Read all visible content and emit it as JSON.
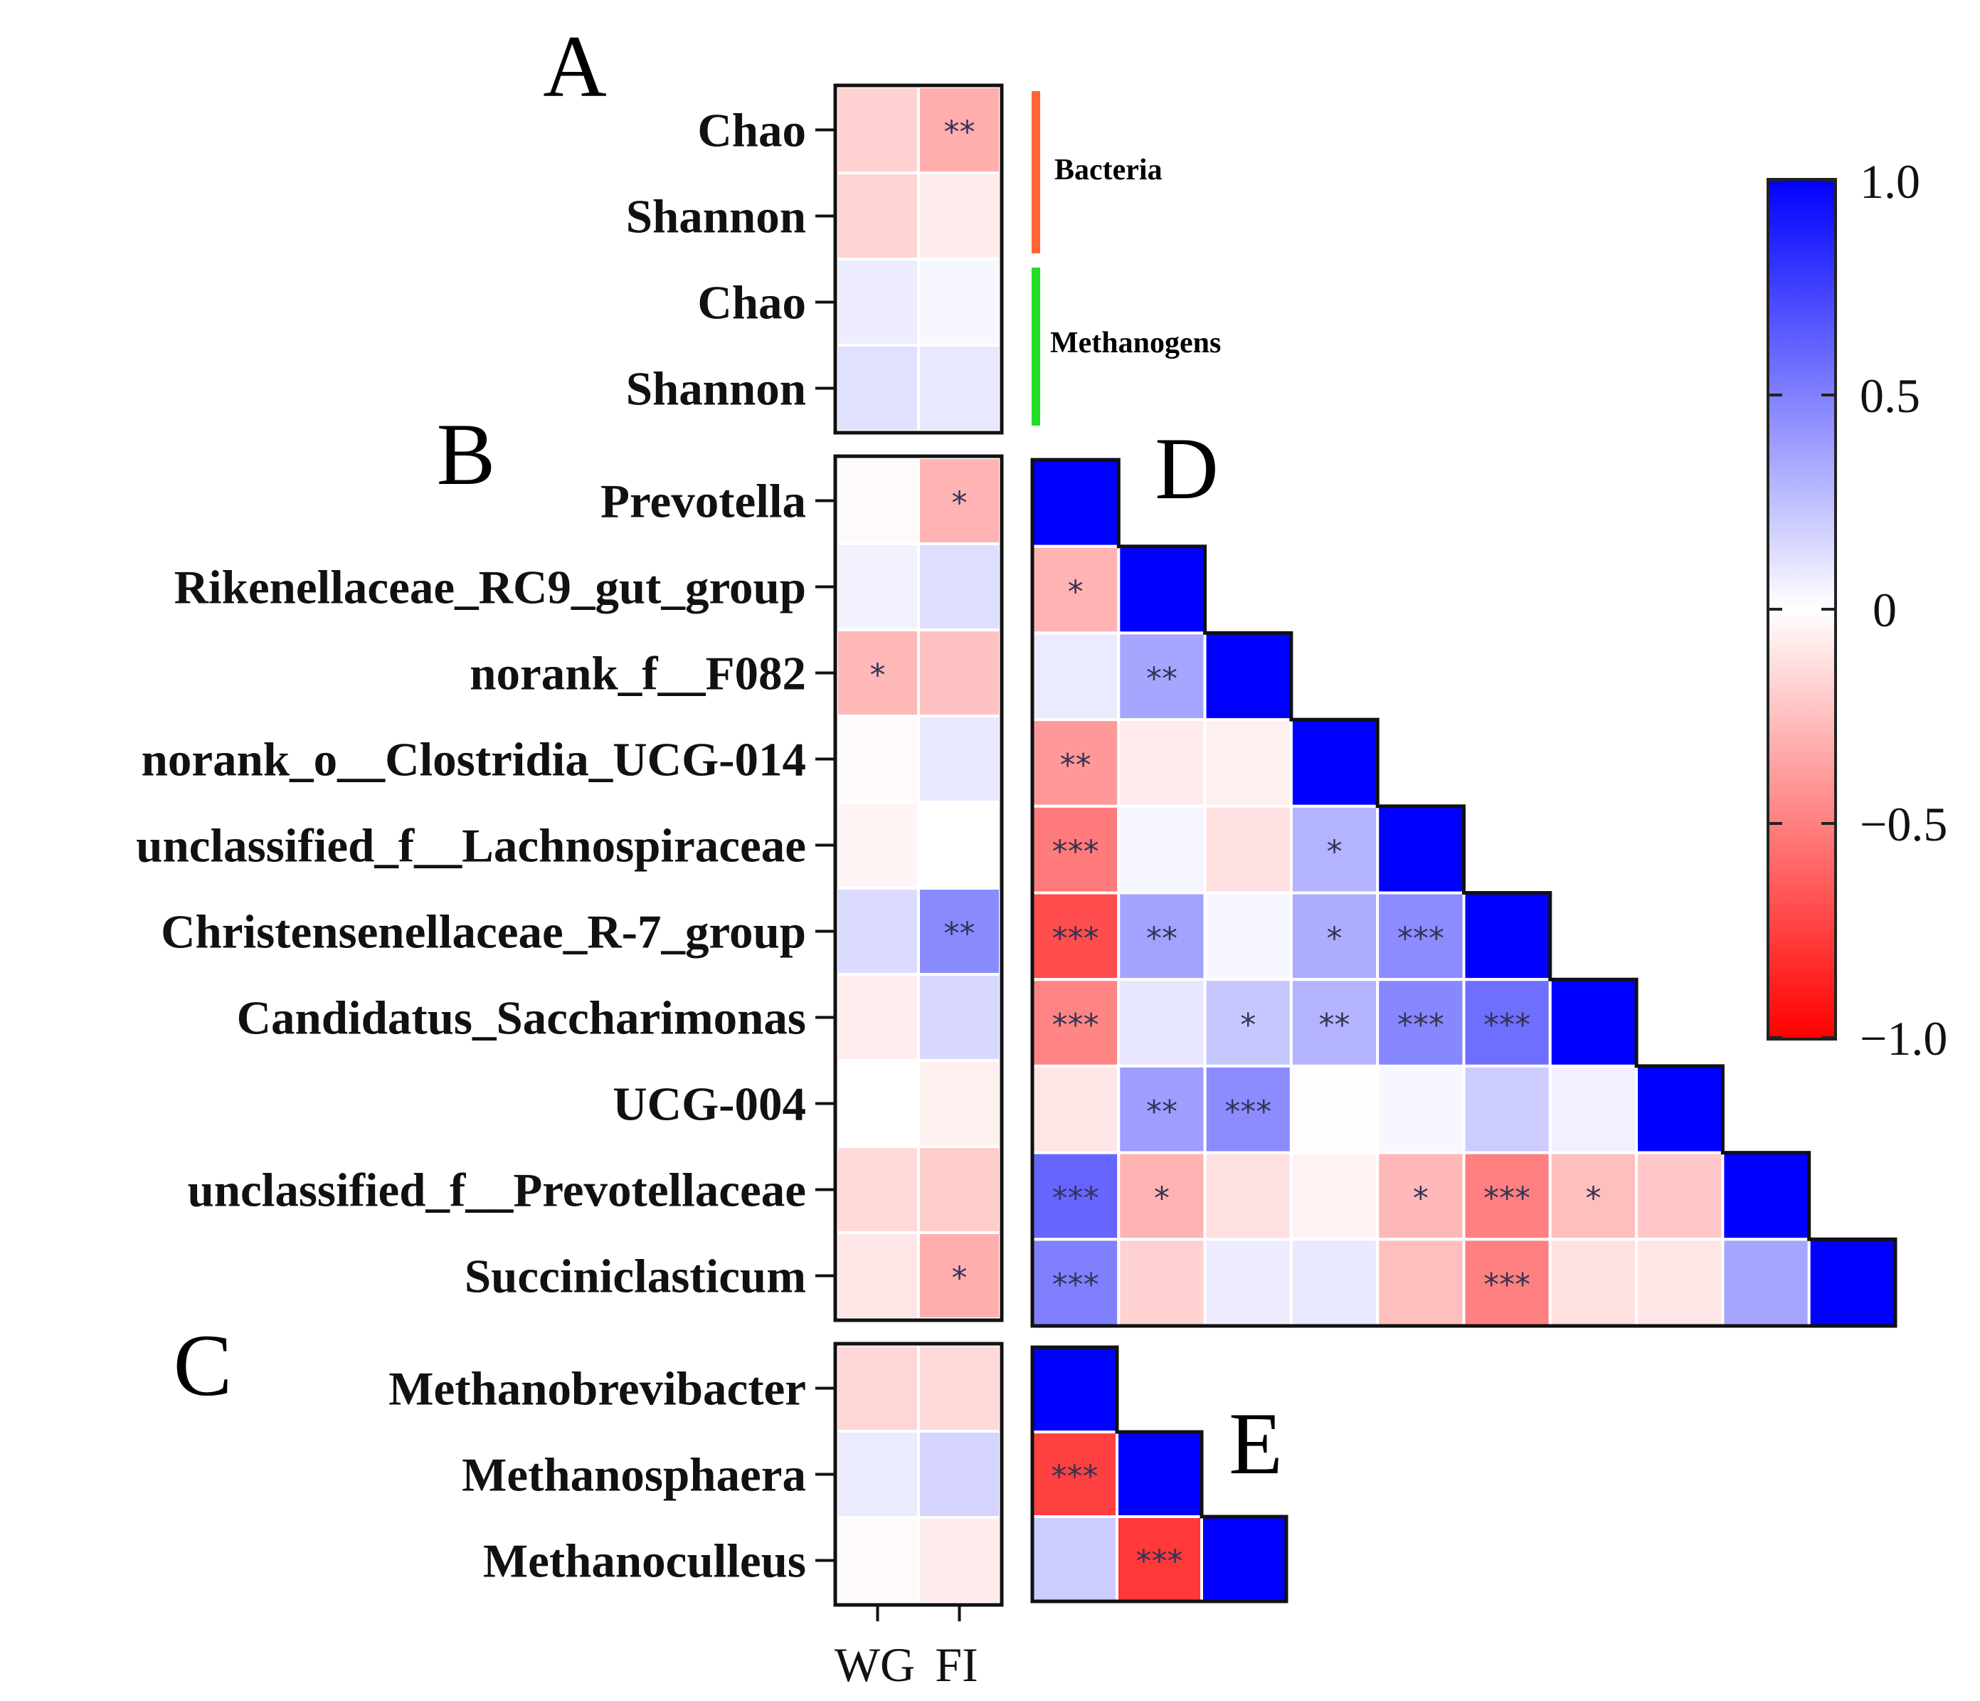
{
  "colors": {
    "pos": "#0000ff",
    "neg": "#ff0000",
    "mid": "#ffffff",
    "bacteria_bar": "#ff6633",
    "methanogens_bar": "#22dd22"
  },
  "chart_data": [
    {
      "panel": "A",
      "type": "heatmap",
      "rows": [
        "Chao",
        "Shannon",
        "Chao",
        "Shannon"
      ],
      "columns": [
        "WG",
        "FI"
      ],
      "groups": [
        {
          "label": "Bacteria",
          "rows": [
            0,
            1
          ]
        },
        {
          "label": "Methanogens",
          "rows": [
            2,
            3
          ]
        }
      ],
      "values": [
        [
          -0.18,
          -0.32
        ],
        [
          -0.17,
          -0.08
        ],
        [
          0.07,
          0.03
        ],
        [
          0.12,
          0.09
        ]
      ],
      "significance": [
        [
          "",
          "**"
        ],
        [
          "",
          ""
        ],
        [
          "",
          ""
        ],
        [
          "",
          ""
        ]
      ]
    },
    {
      "panel": "B",
      "type": "heatmap",
      "rows": [
        "Prevotella",
        "Rikenellaceae_RC9_gut_group",
        "norank_f__F082",
        "norank_o__Clostridia_UCG-014",
        "unclassified_f__Lachnospiraceae",
        "Christensenellaceae_R-7_group",
        "Candidatus_Saccharimonas",
        "UCG-004",
        "unclassified_f__Prevotellaceae",
        "Succiniclasticum"
      ],
      "columns": [
        "WG",
        "FI"
      ],
      "values": [
        [
          -0.02,
          -0.3
        ],
        [
          0.05,
          0.13
        ],
        [
          -0.28,
          -0.24
        ],
        [
          -0.02,
          0.09
        ],
        [
          -0.04,
          0.0
        ],
        [
          0.14,
          0.46
        ],
        [
          -0.07,
          0.15
        ],
        [
          0.0,
          -0.06
        ],
        [
          -0.15,
          -0.2
        ],
        [
          -0.1,
          -0.32
        ]
      ],
      "significance": [
        [
          "",
          "*"
        ],
        [
          "",
          ""
        ],
        [
          "*",
          ""
        ],
        [
          "",
          ""
        ],
        [
          "",
          ""
        ],
        [
          "",
          "**"
        ],
        [
          "",
          ""
        ],
        [
          "",
          ""
        ],
        [
          "",
          ""
        ],
        [
          "",
          "*"
        ]
      ]
    },
    {
      "panel": "C",
      "type": "heatmap",
      "rows": [
        "Methanobrevibacter",
        "Methanosphaera",
        "Methanoculleus"
      ],
      "columns": [
        "WG",
        "FI"
      ],
      "values": [
        [
          -0.16,
          -0.15
        ],
        [
          0.08,
          0.17
        ],
        [
          -0.02,
          -0.08
        ]
      ],
      "significance": [
        [
          "",
          ""
        ],
        [
          "",
          ""
        ],
        [
          "",
          ""
        ]
      ]
    },
    {
      "panel": "D",
      "type": "heatmap",
      "shape": "lower-triangle",
      "variables": [
        "Prevotella",
        "Rikenellaceae_RC9_gut_group",
        "norank_f__F082",
        "norank_o__Clostridia_UCG-014",
        "unclassified_f__Lachnospiraceae",
        "Christensenellaceae_R-7_group",
        "Candidatus_Saccharimonas",
        "UCG-004",
        "unclassified_f__Prevotellaceae",
        "Succiniclasticum"
      ],
      "values": [
        [
          1.0
        ],
        [
          -0.3,
          1.0
        ],
        [
          0.08,
          0.35,
          1.0
        ],
        [
          -0.4,
          -0.08,
          -0.06,
          1.0
        ],
        [
          -0.52,
          0.04,
          -0.12,
          0.3,
          1.0
        ],
        [
          -0.7,
          0.36,
          0.03,
          0.32,
          0.45,
          1.0
        ],
        [
          -0.48,
          0.1,
          0.22,
          0.3,
          0.47,
          0.57,
          1.0
        ],
        [
          -0.1,
          0.38,
          0.45,
          -0.01,
          0.03,
          0.2,
          0.06,
          1.0
        ],
        [
          0.6,
          -0.3,
          -0.12,
          -0.05,
          -0.28,
          -0.5,
          -0.25,
          -0.22,
          1.0
        ],
        [
          0.5,
          -0.18,
          0.07,
          0.09,
          -0.25,
          -0.5,
          -0.12,
          -0.1,
          0.35,
          1.0
        ]
      ],
      "significance": [
        [
          ""
        ],
        [
          "*",
          ""
        ],
        [
          "",
          "**",
          ""
        ],
        [
          "**",
          "",
          "",
          ""
        ],
        [
          "***",
          "",
          "",
          "*",
          ""
        ],
        [
          "***",
          "**",
          "",
          "*",
          "***",
          ""
        ],
        [
          "***",
          "",
          "*",
          "**",
          "***",
          "***",
          ""
        ],
        [
          "",
          "**",
          "***",
          "",
          "",
          "",
          "",
          ""
        ],
        [
          "***",
          "*",
          "",
          "",
          "*",
          "***",
          "*",
          "",
          ""
        ],
        [
          "***",
          "",
          "",
          "",
          "",
          "***",
          "",
          "",
          "",
          ""
        ]
      ]
    },
    {
      "panel": "E",
      "type": "heatmap",
      "shape": "lower-triangle",
      "variables": [
        "Methanobrevibacter",
        "Methanosphaera",
        "Methanoculleus"
      ],
      "values": [
        [
          1.0
        ],
        [
          -0.75,
          1.0
        ],
        [
          0.2,
          -0.78,
          1.0
        ]
      ],
      "significance": [
        [
          ""
        ],
        [
          "***",
          ""
        ],
        [
          "",
          "***",
          ""
        ]
      ]
    }
  ],
  "colorbar": {
    "min": -1.0,
    "max": 1.0,
    "tick_labels": [
      "1.0",
      "0.5",
      "0",
      "−0.5",
      "−1.0"
    ],
    "tick_values": [
      1.0,
      0.5,
      0,
      -0.5,
      -1.0
    ]
  }
}
